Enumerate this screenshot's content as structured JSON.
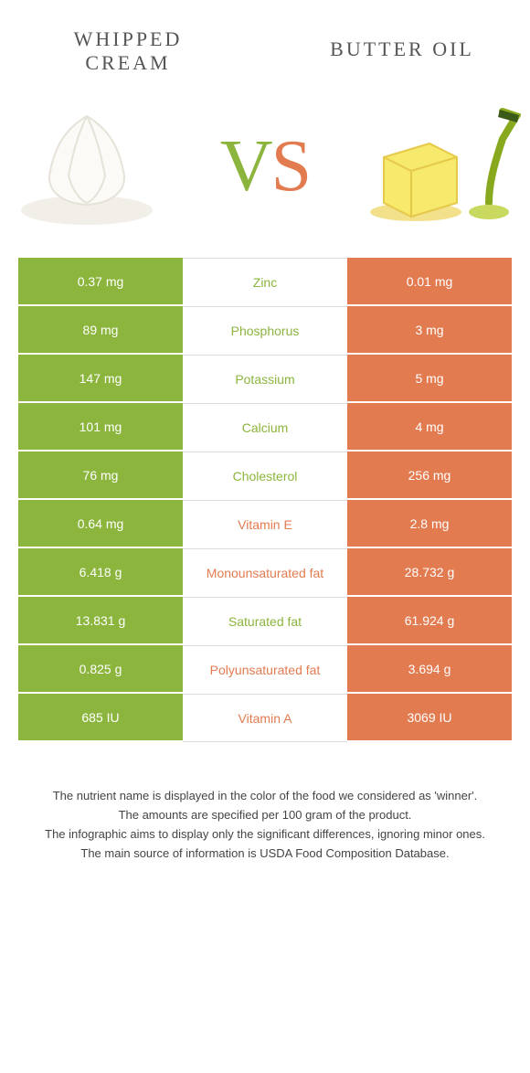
{
  "colors": {
    "left_bar": "#8bb53c",
    "right_bar": "#e37b50",
    "mid_bg": "#ffffff",
    "mid_border": "#dddddd",
    "row_sep": "#ffffff",
    "header_text": "#555555",
    "cell_text": "#ffffff",
    "foot_text": "#444444"
  },
  "header": {
    "left_line1": "WHIPPED",
    "left_line2": "CREAM",
    "right": "BUTTER OIL"
  },
  "vs": {
    "v": "V",
    "s": "S"
  },
  "rows": [
    {
      "nutrient": "Zinc",
      "left": "0.37 mg",
      "right": "0.01 mg",
      "winner": "left"
    },
    {
      "nutrient": "Phosphorus",
      "left": "89 mg",
      "right": "3 mg",
      "winner": "left"
    },
    {
      "nutrient": "Potassium",
      "left": "147 mg",
      "right": "5 mg",
      "winner": "left"
    },
    {
      "nutrient": "Calcium",
      "left": "101 mg",
      "right": "4 mg",
      "winner": "left"
    },
    {
      "nutrient": "Cholesterol",
      "left": "76 mg",
      "right": "256 mg",
      "winner": "left"
    },
    {
      "nutrient": "Vitamin E",
      "left": "0.64 mg",
      "right": "2.8 mg",
      "winner": "right"
    },
    {
      "nutrient": "Monounsaturated fat",
      "left": "6.418 g",
      "right": "28.732 g",
      "winner": "right"
    },
    {
      "nutrient": "Saturated fat",
      "left": "13.831 g",
      "right": "61.924 g",
      "winner": "left"
    },
    {
      "nutrient": "Polyunsaturated fat",
      "left": "0.825 g",
      "right": "3.694 g",
      "winner": "right"
    },
    {
      "nutrient": "Vitamin A",
      "left": "685 IU",
      "right": "3069 IU",
      "winner": "right"
    }
  ],
  "footnotes": [
    "The nutrient name is displayed in the color of the food we considered as 'winner'.",
    "The amounts are specified per 100 gram of the product.",
    "The infographic aims to display only the significant differences, ignoring minor ones.",
    "The main source of information is USDA Food Composition Database."
  ]
}
